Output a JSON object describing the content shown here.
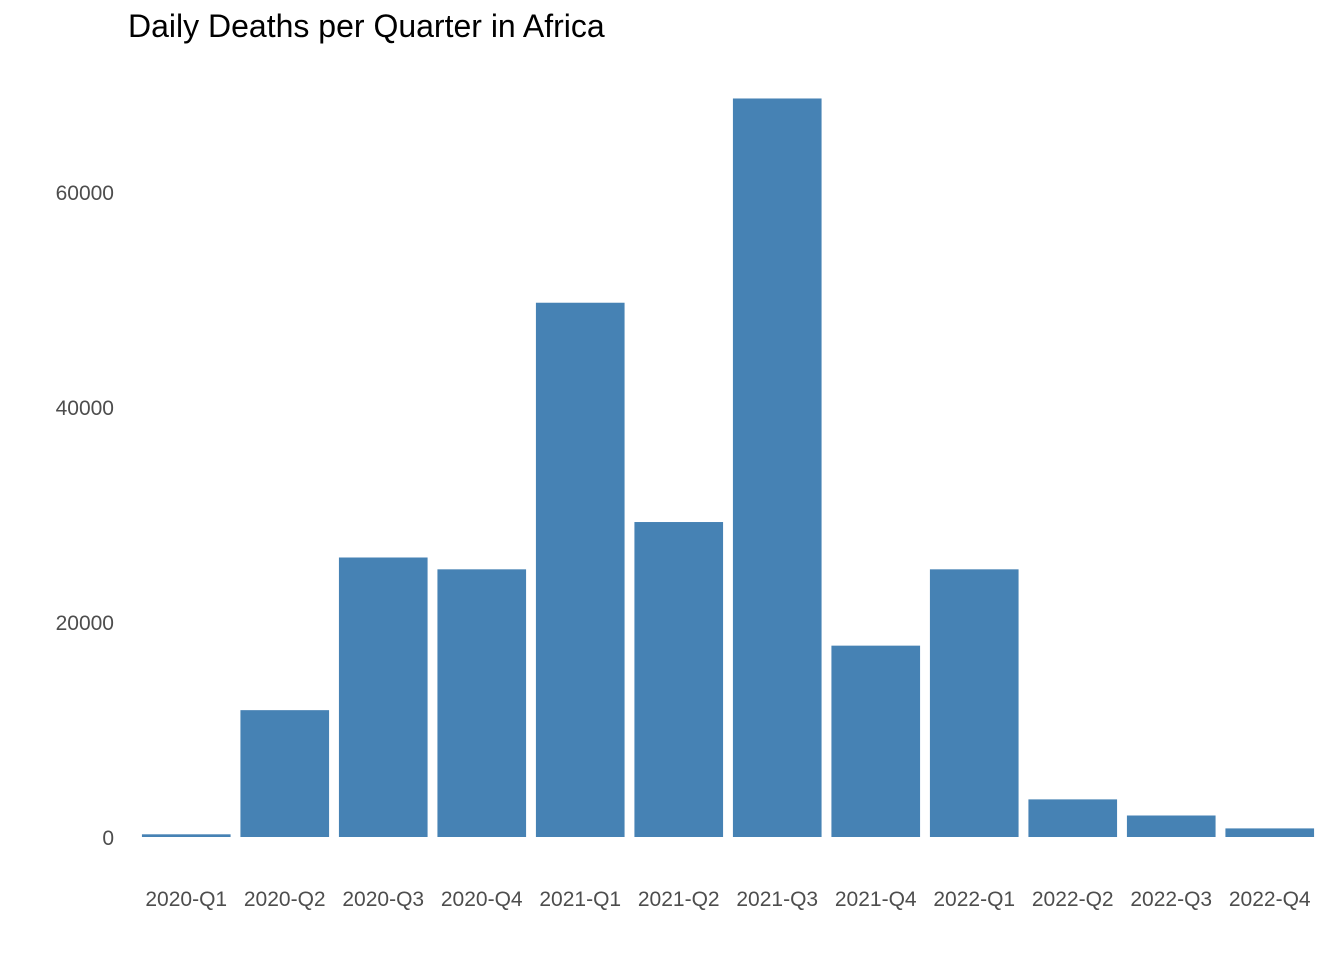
{
  "chart_data": {
    "type": "bar",
    "title": "Daily Deaths per Quarter in Africa",
    "xlabel": "",
    "ylabel": "",
    "categories": [
      "2020-Q1",
      "2020-Q2",
      "2020-Q3",
      "2020-Q4",
      "2021-Q1",
      "2021-Q2",
      "2021-Q3",
      "2021-Q4",
      "2022-Q1",
      "2022-Q2",
      "2022-Q3",
      "2022-Q4"
    ],
    "values": [
      250,
      11800,
      26000,
      24900,
      49700,
      29300,
      68700,
      17800,
      24900,
      3500,
      2000,
      800
    ],
    "ylim": [
      0,
      70000
    ],
    "yticks": [
      0,
      20000,
      40000,
      60000
    ],
    "ytick_labels": [
      "0",
      "20000",
      "40000",
      "60000"
    ],
    "grid": false,
    "bar_color": "#4682b4"
  }
}
